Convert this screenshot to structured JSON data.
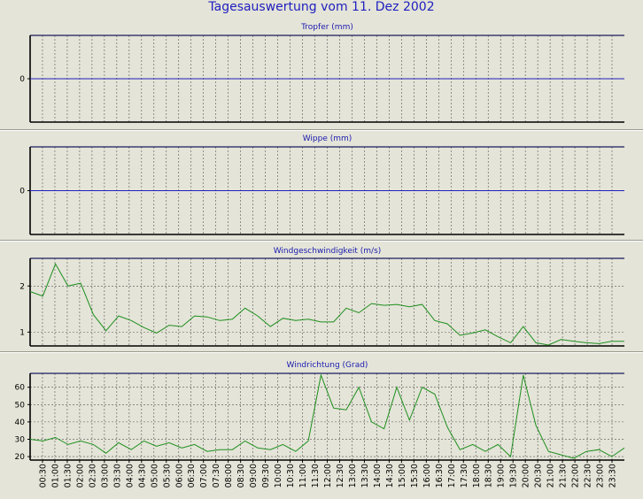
{
  "page_title": "Tagesauswertung vom 11. Dez 2002",
  "x_ticks": [
    "00:30",
    "01:00",
    "01:30",
    "02:00",
    "02:30",
    "03:00",
    "03:30",
    "04:00",
    "04:30",
    "05:00",
    "05:30",
    "06:00",
    "06:30",
    "07:00",
    "07:30",
    "08:00",
    "08:30",
    "09:00",
    "09:30",
    "10:00",
    "10:30",
    "11:00",
    "11:30",
    "12:00",
    "12:30",
    "13:00",
    "13:30",
    "14:00",
    "14:30",
    "15:00",
    "15:30",
    "16:00",
    "16:30",
    "17:00",
    "17:30",
    "18:00",
    "18:30",
    "19:00",
    "19:30",
    "20:00",
    "20:30",
    "21:00",
    "21:30",
    "22:00",
    "22:30",
    "23:00",
    "23:30"
  ],
  "chart_data": [
    {
      "type": "line",
      "title": "Tropfer (mm)",
      "ytick_values": [
        0
      ],
      "ylim": [
        -1,
        1
      ],
      "series": [
        {
          "color": "#2020c0",
          "values": [
            0,
            0,
            0,
            0,
            0,
            0,
            0,
            0,
            0,
            0,
            0,
            0,
            0,
            0,
            0,
            0,
            0,
            0,
            0,
            0,
            0,
            0,
            0,
            0,
            0,
            0,
            0,
            0,
            0,
            0,
            0,
            0,
            0,
            0,
            0,
            0,
            0,
            0,
            0,
            0,
            0,
            0,
            0,
            0,
            0,
            0,
            0,
            0
          ]
        }
      ]
    },
    {
      "type": "line",
      "title": "Wippe (mm)",
      "ytick_values": [
        0
      ],
      "ylim": [
        -1,
        1
      ],
      "series": [
        {
          "color": "#2020c0",
          "values": [
            0,
            0,
            0,
            0,
            0,
            0,
            0,
            0,
            0,
            0,
            0,
            0,
            0,
            0,
            0,
            0,
            0,
            0,
            0,
            0,
            0,
            0,
            0,
            0,
            0,
            0,
            0,
            0,
            0,
            0,
            0,
            0,
            0,
            0,
            0,
            0,
            0,
            0,
            0,
            0,
            0,
            0,
            0,
            0,
            0,
            0,
            0,
            0
          ]
        }
      ]
    },
    {
      "type": "line",
      "title": "Windgeschwindigkeit (m/s)",
      "ytick_values": [
        1,
        2
      ],
      "ylim": [
        0.7,
        2.6
      ],
      "series": [
        {
          "color": "#1e8f1e",
          "values": [
            1.88,
            1.78,
            2.48,
            2.0,
            2.06,
            1.38,
            1.03,
            1.35,
            1.25,
            1.1,
            0.98,
            1.15,
            1.12,
            1.35,
            1.33,
            1.25,
            1.28,
            1.52,
            1.35,
            1.12,
            1.3,
            1.25,
            1.28,
            1.22,
            1.22,
            1.52,
            1.42,
            1.62,
            1.58,
            1.6,
            1.55,
            1.6,
            1.25,
            1.18,
            0.93,
            0.98,
            1.05,
            0.9,
            0.77,
            1.12,
            0.77,
            0.72,
            0.84,
            0.8,
            0.77,
            0.75,
            0.8,
            0.8
          ]
        }
      ]
    },
    {
      "type": "line",
      "title": "Windrichtung (Grad)",
      "ytick_values": [
        20,
        30,
        40,
        50,
        60
      ],
      "ylim": [
        18,
        68
      ],
      "series": [
        {
          "color": "#1e8f1e",
          "values": [
            30,
            29,
            31,
            27,
            29,
            27,
            22,
            28,
            24,
            29,
            26,
            28,
            25,
            27,
            23,
            24,
            24,
            29,
            25,
            24,
            27,
            23,
            29,
            67,
            48,
            47,
            60,
            40,
            36,
            60,
            41,
            60,
            56,
            37,
            24,
            27,
            23,
            27,
            20,
            67,
            38,
            23,
            21,
            19,
            23,
            24,
            20,
            25
          ]
        }
      ]
    }
  ]
}
